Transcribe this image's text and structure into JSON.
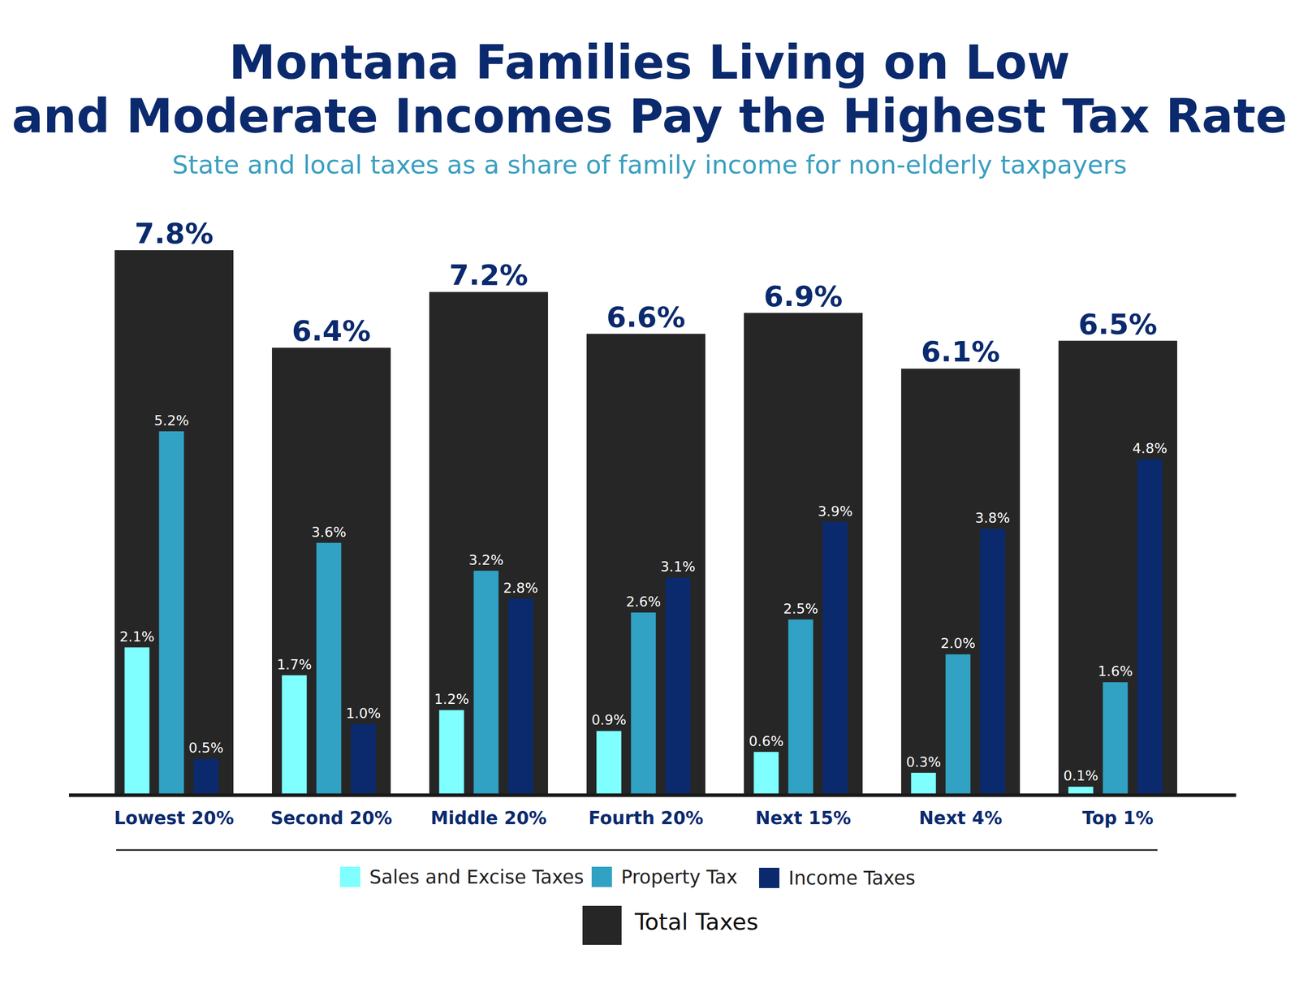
{
  "chart_data": {
    "type": "bar",
    "title": "Montana Families Living on Low\nand Moderate Incomes Pay the Highest Tax Rate",
    "subtitle": "State and local taxes as a share of family income for non-elderly taxpayers",
    "categories": [
      "Lowest 20%",
      "Second 20%",
      "Middle 20%",
      "Fourth 20%",
      "Next 15%",
      "Next 4%",
      "Top 1%"
    ],
    "series": [
      {
        "name": "Sales and Excise Taxes",
        "color": "#7fffff",
        "values": [
          2.1,
          1.7,
          1.2,
          0.9,
          0.6,
          0.3,
          0.1
        ],
        "value_labels": [
          "2.1%",
          "1.7%",
          "1.2%",
          "0.9%",
          "0.6%",
          "0.3%",
          "0.1%"
        ]
      },
      {
        "name": "Property Tax",
        "color": "#31a2c4",
        "values": [
          5.2,
          3.6,
          3.2,
          2.6,
          2.5,
          2.0,
          1.6
        ],
        "value_labels": [
          "5.2%",
          "3.6%",
          "3.2%",
          "2.6%",
          "2.5%",
          "2.0%",
          "1.6%"
        ]
      },
      {
        "name": "Income Taxes",
        "color": "#0b2a6e",
        "values": [
          0.5,
          1.0,
          2.8,
          3.1,
          3.9,
          3.8,
          4.8
        ],
        "value_labels": [
          "0.5%",
          "1.0%",
          "2.8%",
          "3.1%",
          "3.9%",
          "3.8%",
          "4.8%"
        ]
      },
      {
        "name": "Total Taxes",
        "color": "#262626",
        "values": [
          7.8,
          6.4,
          7.2,
          6.6,
          6.9,
          6.1,
          6.5
        ],
        "value_labels": [
          "7.8%",
          "6.4%",
          "7.2%",
          "6.6%",
          "6.9%",
          "6.1%",
          "6.5%"
        ]
      }
    ],
    "ylim": [
      0,
      7.8
    ],
    "tick_labels": "x",
    "data_labels": true,
    "legend": "bottom"
  }
}
